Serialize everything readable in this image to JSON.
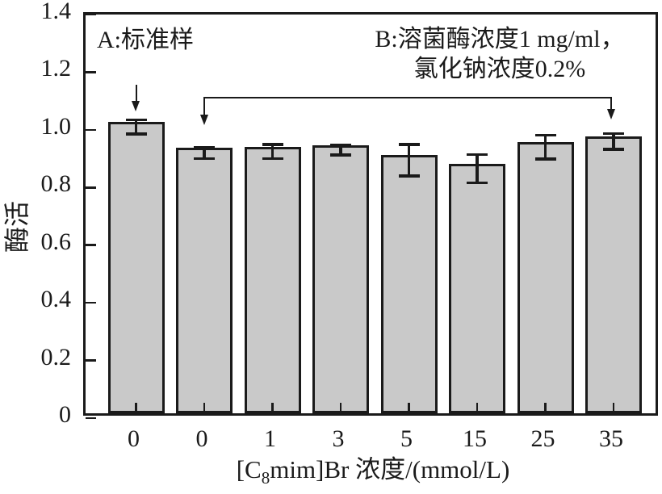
{
  "figure": {
    "background": "#ffffff",
    "line_color": "#1a1a1a"
  },
  "chart_data": {
    "type": "bar",
    "title": "",
    "categories": [
      "0",
      "0",
      "1",
      "3",
      "5",
      "15",
      "25",
      "35"
    ],
    "values": [
      1.01,
      0.92,
      0.925,
      0.93,
      0.895,
      0.865,
      0.94,
      0.96
    ],
    "error_bars": [
      0.025,
      0.02,
      0.025,
      0.018,
      0.055,
      0.05,
      0.042,
      0.028
    ],
    "xlabel": "[C8mim]Br 浓度/(mmol/L)",
    "xlabel_parts": {
      "prefix": "[C",
      "sub": "8",
      "suffix": "mim]Br 浓度/(mmol/L)"
    },
    "ylabel": "酶活",
    "ylim": [
      0,
      1.4
    ],
    "ytick_values": [
      0,
      0.2,
      0.4,
      0.6,
      0.8,
      1.0,
      1.2,
      1.4
    ],
    "ytick_labels": [
      "0",
      "0.2",
      "0.4",
      "0.6",
      "0.8",
      "1.0",
      "1.2",
      "1.4"
    ],
    "grid": false,
    "legend": "none",
    "bar_fill": "#c9c9c9",
    "bar_stroke": "#1a1a1a",
    "annotations": {
      "a_label": "A:标准样",
      "b_label_line1": "B:溶菌酶浓度1 mg/ml，",
      "b_label_line2": "氯化钠浓度0.2%",
      "a_arrow_target_bar_index": 0,
      "b_bracket_bar_indices": [
        1,
        7
      ]
    }
  }
}
